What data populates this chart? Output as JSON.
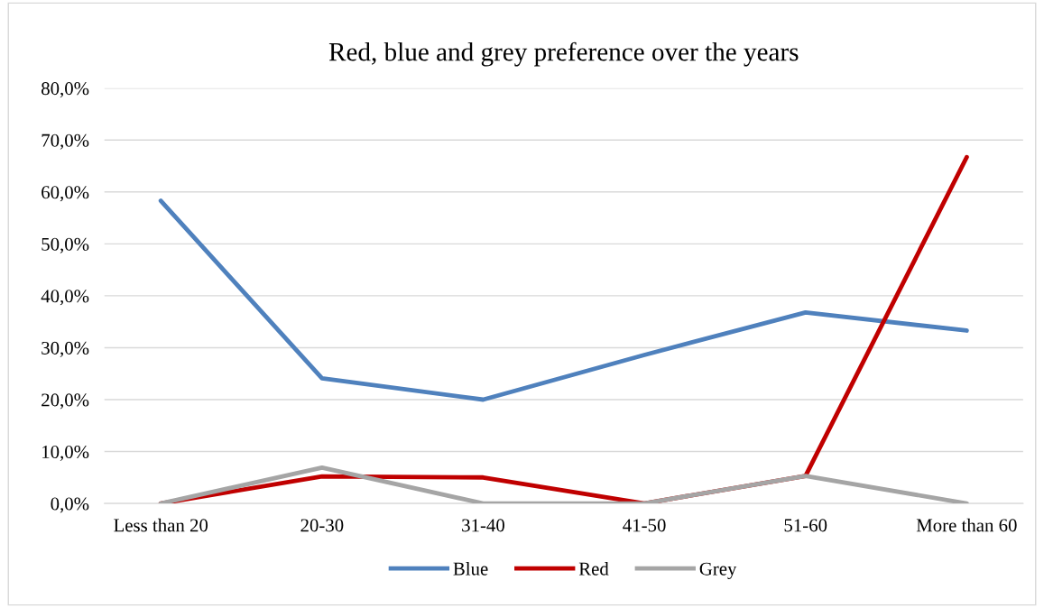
{
  "chart_data": {
    "type": "line",
    "title": "Red, blue and grey preference over the years",
    "categories": [
      "Less than 20",
      "20-30",
      "31-40",
      "41-50",
      "51-60",
      "More than 60"
    ],
    "series": [
      {
        "name": "Blue",
        "color": "#4f81bd",
        "values": [
          58.3,
          24.1,
          20.0,
          28.6,
          36.8,
          33.3
        ]
      },
      {
        "name": "Red",
        "color": "#c00000",
        "values": [
          0,
          5.2,
          5.0,
          0,
          5.3,
          66.7
        ]
      },
      {
        "name": "Grey",
        "color": "#a5a5a5",
        "values": [
          0,
          6.9,
          0,
          0,
          5.3,
          0
        ]
      }
    ],
    "ylim": [
      0,
      80
    ],
    "yticks": [
      {
        "value": 0,
        "label": "0,0%"
      },
      {
        "value": 10,
        "label": "10,0%"
      },
      {
        "value": 20,
        "label": "20,0%"
      },
      {
        "value": 30,
        "label": "30,0%"
      },
      {
        "value": 40,
        "label": "40,0%"
      },
      {
        "value": 50,
        "label": "50,0%"
      },
      {
        "value": 60,
        "label": "60,0%"
      },
      {
        "value": 70,
        "label": "70,0%"
      },
      {
        "value": 80,
        "label": "80,0%"
      }
    ],
    "grid": "y",
    "legend": "bottom",
    "marker": "none",
    "line_style": "solid"
  }
}
